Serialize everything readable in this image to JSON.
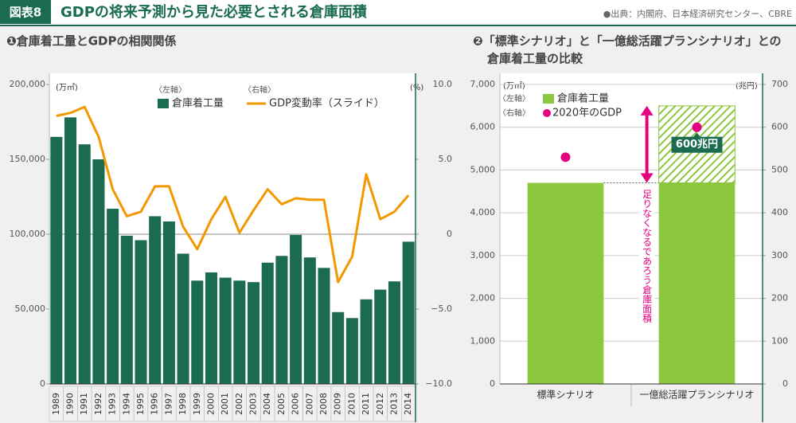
{
  "header": {
    "label": "図表8",
    "title": "GDPの将来予測から見た必要とされる倉庫面積",
    "source": "●出典：内閣府、日本経済研究センター、CBRE"
  },
  "chart_data": [
    {
      "type": "bar",
      "title": "❶倉庫着工量とGDPの相関関係",
      "y_unit": "(万㎡)",
      "y2_unit": "(%)",
      "categories": [
        "1989",
        "1990",
        "1991",
        "1992",
        "1993",
        "1994",
        "1995",
        "1996",
        "1997",
        "1998",
        "1999",
        "2000",
        "2001",
        "2002",
        "2003",
        "2004",
        "2005",
        "2006",
        "2007",
        "2008",
        "2009",
        "2010",
        "2011",
        "2012",
        "2013",
        "2014"
      ],
      "series": [
        {
          "name": "倉庫着工量",
          "axis_label": "〈左軸〉",
          "type": "bar",
          "color": "#1a6b4f",
          "values": [
            165000,
            178000,
            160000,
            150000,
            117000,
            99000,
            96000,
            112000,
            108500,
            87000,
            69000,
            74500,
            71000,
            69000,
            68000,
            81000,
            85500,
            99500,
            84500,
            77500,
            48000,
            44000,
            56500,
            63000,
            68500,
            95000
          ]
        },
        {
          "name": "GDP変動率（スライド）",
          "axis_label": "〈右軸〉",
          "type": "line",
          "color": "#f39800",
          "axis": "y2",
          "values": [
            7.9,
            8.1,
            8.5,
            6.5,
            3.0,
            1.2,
            1.5,
            3.2,
            3.2,
            0.5,
            -1.0,
            1.0,
            2.5,
            0.1,
            1.6,
            3.0,
            2.0,
            2.4,
            2.3,
            2.3,
            -3.2,
            -1.5,
            4.0,
            1.0,
            1.5,
            2.6
          ]
        }
      ],
      "ylim": [
        0,
        200000
      ],
      "yticks": [
        0,
        {
          "value": 50000,
          "label": "50,000"
        },
        {
          "value": 100000,
          "label": "100,000"
        },
        {
          "value": 150000,
          "label": "150,000"
        },
        {
          "value": 200000,
          "label": "200,000"
        }
      ],
      "y2lim": [
        -10,
        10
      ],
      "y2ticks": [
        {
          "value": -10,
          "label": "−10.0"
        },
        {
          "value": -5,
          "label": "−5.0"
        },
        0,
        {
          "value": 5,
          "label": "5.0"
        },
        {
          "value": 10,
          "label": "10.0"
        }
      ],
      "grid": false,
      "zero_line": true
    },
    {
      "type": "bar",
      "title": [
        "❷「標準シナリオ」と「一億総活躍プランシナリオ」との",
        "倉庫着工量の比較"
      ],
      "y_unit": "(万㎡)",
      "y2_unit": "(兆円)",
      "categories": [
        "標準シナリオ",
        "一億総活躍プランシナリオ"
      ],
      "series": [
        {
          "name": "倉庫着工量",
          "axis_label": "〈左軸〉",
          "type": "bar",
          "color": "#8dc63f",
          "values": [
            4700,
            4700
          ]
        },
        {
          "name": "足りなくなるであろう倉庫面積",
          "type": "bar",
          "hatch": true,
          "color": "#8dc63f",
          "label_color": "#e4007f",
          "values": [
            null,
            1800
          ]
        },
        {
          "name": "2020年のGDP",
          "axis_label": "〈右軸〉",
          "type": "scatter",
          "axis": "y2",
          "color": "#e4007f",
          "values": [
            530,
            600
          ],
          "value_labels": [
            null,
            "600兆円"
          ]
        }
      ],
      "ylim": [
        0,
        7000
      ],
      "yticks": [
        0,
        {
          "value": 1000,
          "label": "1,000"
        },
        {
          "value": 2000,
          "label": "2,000"
        },
        {
          "value": 3000,
          "label": "3,000"
        },
        {
          "value": 4000,
          "label": "4,000"
        },
        {
          "value": 5000,
          "label": "5,000"
        },
        {
          "value": 6000,
          "label": "6,000"
        },
        {
          "value": 7000,
          "label": "7,000"
        }
      ],
      "y2lim": [
        0,
        700
      ],
      "y2ticks": [
        0,
        100,
        200,
        300,
        400,
        500,
        600,
        700
      ],
      "grid": true,
      "zero_line": false
    }
  ]
}
